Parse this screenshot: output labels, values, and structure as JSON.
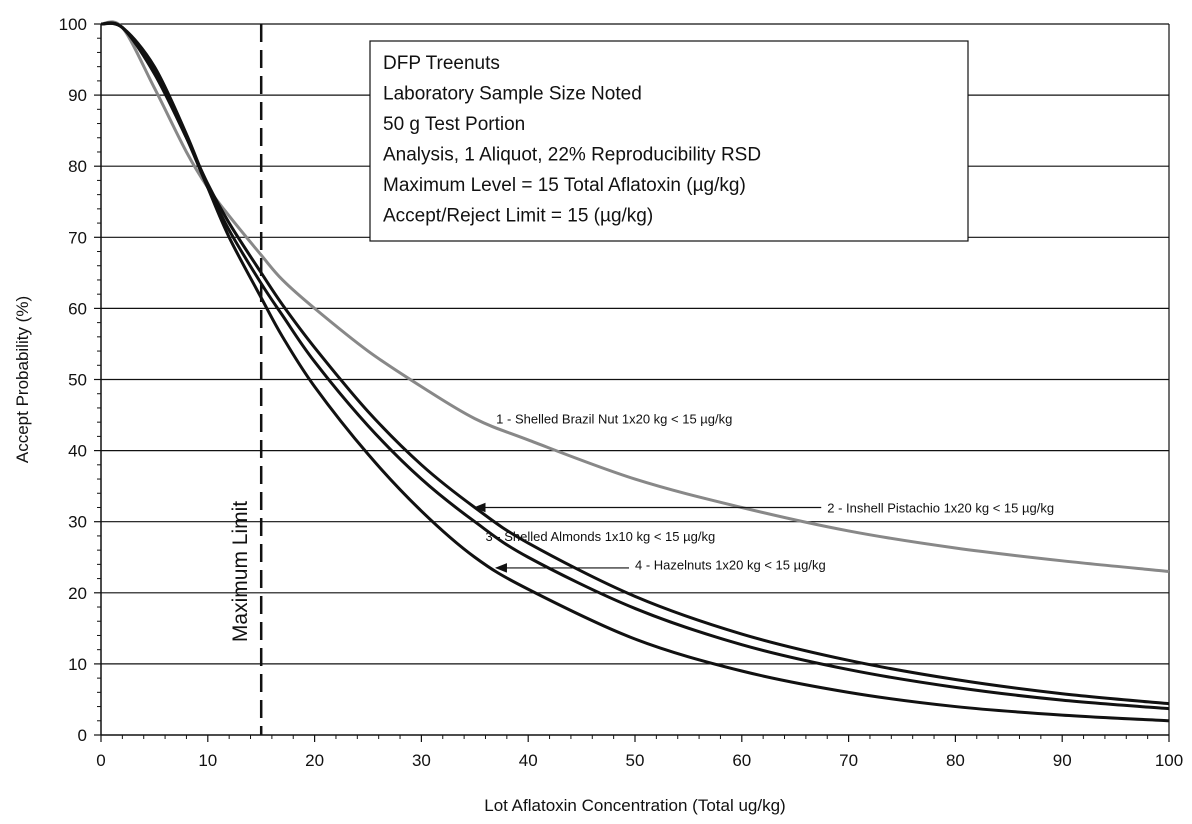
{
  "chart_data": {
    "type": "line",
    "title": "",
    "xlabel": "Lot Aflatoxin Concentration (Total ug/kg)",
    "ylabel": "Accept Probability (%)",
    "xlim": [
      0,
      100
    ],
    "ylim": [
      0,
      100
    ],
    "xticks": [
      "0",
      "10",
      "20",
      "30",
      "40",
      "50",
      "60",
      "70",
      "80",
      "90",
      "100"
    ],
    "yticks": [
      "0",
      "10",
      "20",
      "30",
      "40",
      "50",
      "60",
      "70",
      "80",
      "90",
      "100"
    ],
    "grid": "horizontal",
    "info_box": [
      "DFP Treenuts",
      "Laboratory Sample Size Noted",
      "50 g Test Portion",
      "Analysis, 1 Aliquot, 22% Reproducibility RSD",
      "Maximum Level = 15 Total Aflatoxin (µg/kg)",
      "Accept/Reject Limit = 15 (µg/kg)"
    ],
    "vertical_marker": {
      "x": 15,
      "label": "Maximum Limit"
    },
    "series": [
      {
        "name": "1 - Shelled Brazil Nut 1x20 kg < 15 µg/kg",
        "color": "#888888",
        "x": [
          0,
          2,
          5,
          8,
          10,
          12,
          15,
          17,
          20,
          25,
          30,
          35,
          40,
          50,
          60,
          70,
          80,
          90,
          100
        ],
        "y": [
          100,
          99.5,
          91,
          82,
          77,
          73,
          67.5,
          64,
          60,
          54,
          49,
          44.5,
          41.5,
          36,
          32,
          28.7,
          26.3,
          24.5,
          23
        ]
      },
      {
        "name": "2 - Inshell Pistachio 1x20 kg < 15 µg/kg",
        "color": "#111111",
        "x": [
          0,
          2,
          5,
          8,
          10,
          12,
          15,
          17,
          20,
          25,
          30,
          35,
          40,
          50,
          60,
          70,
          80,
          90,
          100
        ],
        "y": [
          100,
          99.5,
          93,
          84,
          77.5,
          72,
          65,
          60.5,
          54.5,
          45.5,
          38,
          32,
          27,
          19.5,
          14.2,
          10.5,
          7.8,
          5.8,
          4.4
        ]
      },
      {
        "name": "3 - Shelled Almonds 1x10 kg < 15 µg/kg",
        "color": "#111111",
        "x": [
          0,
          2,
          5,
          8,
          10,
          12,
          15,
          17,
          20,
          25,
          30,
          35,
          40,
          50,
          60,
          70,
          80,
          90,
          100
        ],
        "y": [
          100,
          99.5,
          93.5,
          84,
          77,
          71,
          63.5,
          59,
          52.5,
          43.5,
          36,
          30,
          25,
          17.8,
          12.7,
          9.2,
          6.7,
          4.9,
          3.7
        ]
      },
      {
        "name": "4 - Hazelnuts 1x20 kg < 15 µg/kg",
        "color": "#111111",
        "x": [
          0,
          2,
          5,
          8,
          10,
          12,
          15,
          17,
          20,
          25,
          30,
          35,
          40,
          50,
          60,
          70,
          80,
          90,
          100
        ],
        "y": [
          100,
          99.5,
          94,
          84.5,
          77,
          70,
          61.5,
          56,
          49,
          39.5,
          31.5,
          25,
          20.5,
          13.5,
          9,
          6,
          4,
          2.8,
          2
        ]
      }
    ],
    "annotations": [
      {
        "text": "1 - Shelled Brazil Nut 1x20 kg < 15 µg/kg",
        "x": 37,
        "y": 44.5,
        "arrow": false
      },
      {
        "text": "2 - Inshell Pistachio 1x20 kg < 15 µg/kg",
        "x": 68,
        "y": 32,
        "arrow_to": [
          35,
          32
        ],
        "arrow": true
      },
      {
        "text": "3 - Shelled Almonds 1x10 kg < 15 µg/kg",
        "x": 36,
        "y": 28,
        "arrow": false
      },
      {
        "text": "4 - Hazelnuts 1x20 kg < 15 µg/kg",
        "x": 50,
        "y": 24,
        "arrow_to": [
          37,
          23.5
        ],
        "arrow": true
      }
    ]
  }
}
